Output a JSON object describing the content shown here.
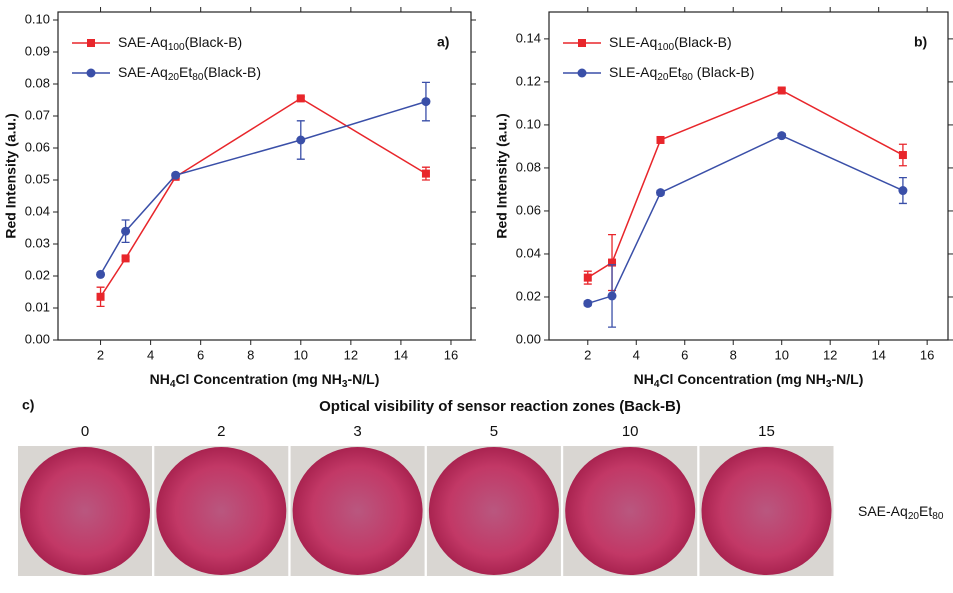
{
  "chart_data": [
    {
      "type": "line",
      "label": "a)",
      "xlabel": "NH4Cl Concentration (mg NH3-N/L)",
      "ylabel": "Red Intensity (a.u.)",
      "x": [
        2,
        3,
        5,
        10,
        15
      ],
      "xlim": [
        0.3,
        16.8
      ],
      "xticks": [
        2,
        4,
        6,
        8,
        10,
        12,
        14,
        16
      ],
      "ylim": [
        0,
        0.1025
      ],
      "yticks": [
        {
          "value": 0,
          "label": "0.00"
        },
        {
          "value": 0.01,
          "label": "0.01"
        },
        {
          "value": 0.02,
          "label": "0.02"
        },
        {
          "value": 0.03,
          "label": "0.03"
        },
        {
          "value": 0.04,
          "label": "0.04"
        },
        {
          "value": 0.05,
          "label": "0.05"
        },
        {
          "value": 0.06,
          "label": "0.06"
        },
        {
          "value": 0.07,
          "label": "0.07"
        },
        {
          "value": 0.08,
          "label": "0.08"
        },
        {
          "value": 0.09,
          "label": "0.09"
        },
        {
          "value": 0.1,
          "label": "0.10"
        }
      ],
      "series": [
        {
          "name": "SAE-Aq100(Black-B)",
          "color": "#e8262b",
          "marker": "square",
          "values": [
            0.0135,
            0.0255,
            0.051,
            0.0755,
            0.052
          ],
          "errors": [
            0.003,
            0.0005,
            0.0005,
            0.0005,
            0.002
          ]
        },
        {
          "name": "SAE-Aq20Et80(Black-B)",
          "color": "#3a4fa8",
          "marker": "circle",
          "values": [
            0.0205,
            0.034,
            0.0515,
            0.0625,
            0.0745
          ],
          "errors": [
            0.0005,
            0.0035,
            0.0005,
            0.006,
            0.006
          ]
        }
      ]
    },
    {
      "type": "line",
      "label": "b)",
      "xlabel": "NH4Cl Concentration (mg NH3-N/L)",
      "ylabel": "Red Intensity (a.u.)",
      "x": [
        2,
        3,
        5,
        10,
        15
      ],
      "xlim": [
        0.4,
        16.86
      ],
      "xticks": [
        2,
        4,
        6,
        8,
        10,
        12,
        14,
        16
      ],
      "ylim": [
        0,
        0.1525
      ],
      "yticks": [
        {
          "value": 0,
          "label": "0.00"
        },
        {
          "value": 0.02,
          "label": "0.02"
        },
        {
          "value": 0.04,
          "label": "0.04"
        },
        {
          "value": 0.06,
          "label": "0.06"
        },
        {
          "value": 0.08,
          "label": "0.08"
        },
        {
          "value": 0.1,
          "label": "0.10"
        },
        {
          "value": 0.12,
          "label": "0.12"
        },
        {
          "value": 0.14,
          "label": "0.14"
        }
      ],
      "series": [
        {
          "name": "SLE-Aq100(Black-B)",
          "color": "#e8262b",
          "marker": "square",
          "values": [
            0.029,
            0.036,
            0.093,
            0.116,
            0.086
          ],
          "errors": [
            0.003,
            0.013,
            0.001,
            0.001,
            0.005
          ]
        },
        {
          "name": "SLE-Aq20Et80 (Black-B)",
          "color": "#3a4fa8",
          "marker": "circle",
          "values": [
            0.017,
            0.0205,
            0.0685,
            0.095,
            0.0695
          ],
          "errors": [
            0.001,
            0.0145,
            0.001,
            0.001,
            0.006
          ]
        }
      ]
    }
  ],
  "panel_c": {
    "label": "c)",
    "title": "Optical visibility of sensor reaction zones (Back-B)",
    "concentrations": [
      "0",
      "2",
      "3",
      "5",
      "10",
      "15"
    ],
    "row_label": "SAE-Aq20Et80"
  }
}
